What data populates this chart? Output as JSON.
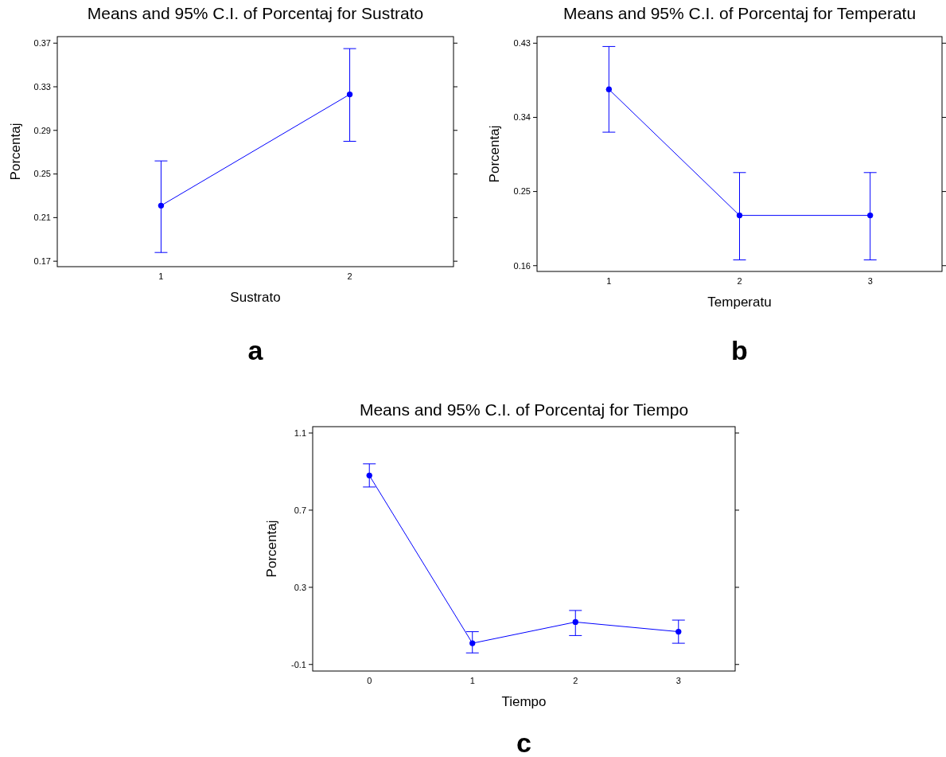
{
  "chart_data": [
    {
      "type": "line",
      "title": "Means and 95% C.I. of Porcentaj for Sustrato",
      "xlabel": "Sustrato",
      "ylabel": "Porcentaj",
      "categories": [
        "1",
        "2"
      ],
      "series": [
        {
          "color": "#0000ff",
          "values": [
            0.221,
            0.323
          ],
          "errors": [
            [
              0.178,
              0.262
            ],
            [
              0.28,
              0.365
            ]
          ]
        }
      ],
      "marker": "circle",
      "ylim": [
        0.165,
        0.376
      ],
      "yticks": [
        {
          "value": 0.17,
          "label": "0.17"
        },
        {
          "value": 0.21,
          "label": "0.21"
        },
        {
          "value": 0.25,
          "label": "0.25"
        },
        {
          "value": 0.29,
          "label": "0.29"
        },
        {
          "value": 0.33,
          "label": "0.33"
        },
        {
          "value": 0.37,
          "label": "0.37"
        }
      ],
      "annotations": [
        "a"
      ]
    },
    {
      "type": "line",
      "title": "Means and 95% C.I. of Porcentaj for Temperatu",
      "xlabel": "Temperatu",
      "ylabel": "Porcentaj",
      "categories": [
        "1",
        "2",
        "3"
      ],
      "series": [
        {
          "color": "#0000ff",
          "values": [
            0.374,
            0.221,
            0.221
          ],
          "errors": [
            [
              0.322,
              0.426
            ],
            [
              0.167,
              0.273
            ],
            [
              0.167,
              0.273
            ]
          ]
        }
      ],
      "marker": "circle",
      "ylim": [
        0.153,
        0.438
      ],
      "yticks": [
        {
          "value": 0.16,
          "label": "0.16"
        },
        {
          "value": 0.25,
          "label": "0.25"
        },
        {
          "value": 0.34,
          "label": "0.34"
        },
        {
          "value": 0.43,
          "label": "0.43"
        }
      ],
      "annotations": [
        "b"
      ]
    },
    {
      "type": "line",
      "title": "Means and 95% C.I. of Porcentaj for Tiempo",
      "xlabel": "Tiempo",
      "ylabel": "Porcentaj",
      "categories": [
        "0",
        "1",
        "2",
        "3"
      ],
      "series": [
        {
          "color": "#0000ff",
          "values": [
            0.88,
            0.01,
            0.12,
            0.07
          ],
          "errors": [
            [
              0.82,
              0.94
            ],
            [
              -0.04,
              0.07
            ],
            [
              0.05,
              0.18
            ],
            [
              0.01,
              0.13
            ]
          ]
        }
      ],
      "marker": "circle",
      "ylim": [
        -0.134,
        1.133
      ],
      "yticks": [
        {
          "value": -0.1,
          "label": "-0.1"
        },
        {
          "value": 0.3,
          "label": "0.3"
        },
        {
          "value": 0.7,
          "label": "0.7"
        },
        {
          "value": 1.1,
          "label": "1.1"
        }
      ],
      "annotations": [
        "c"
      ]
    }
  ]
}
